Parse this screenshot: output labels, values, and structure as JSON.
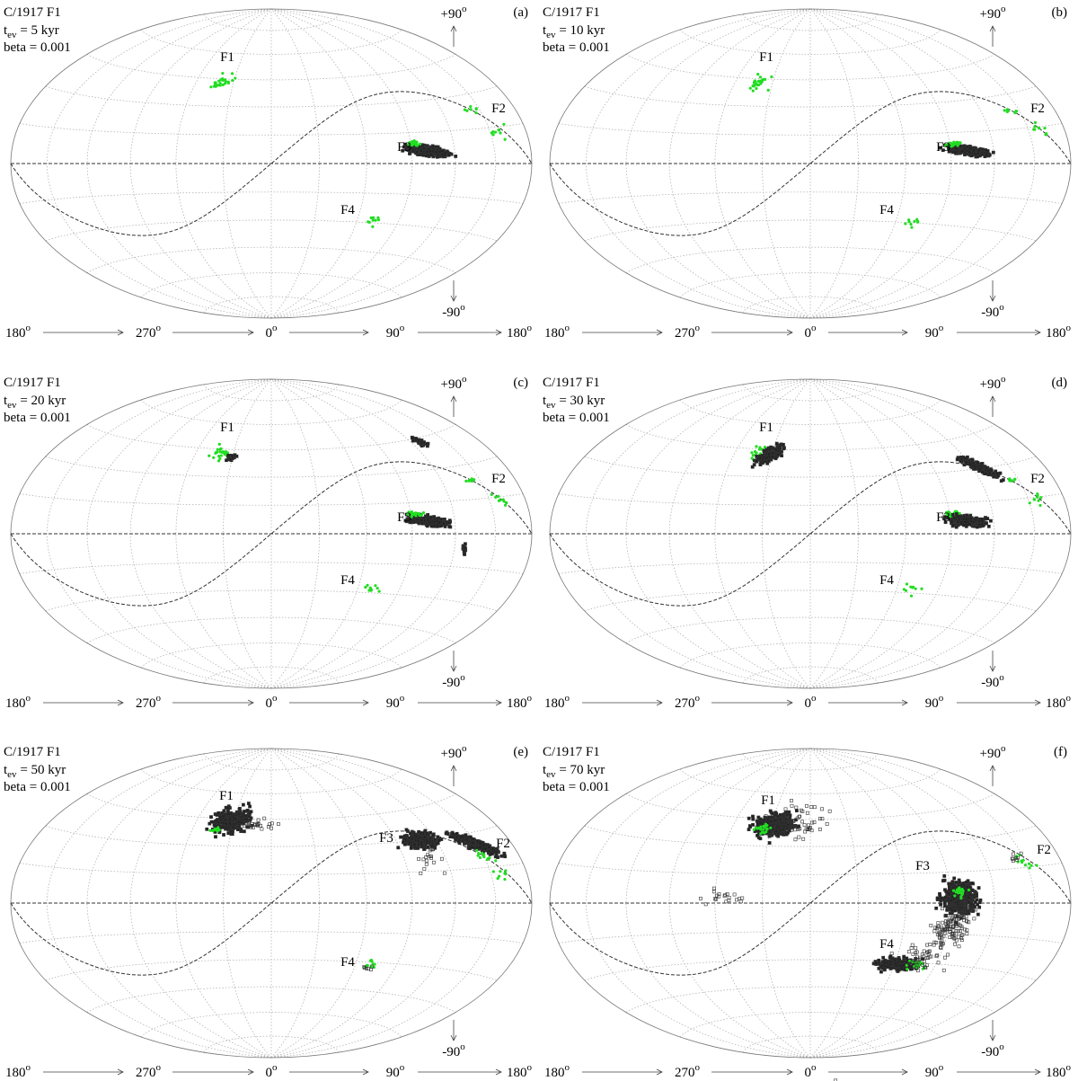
{
  "figure": {
    "object_label": "C/1917 F1",
    "beta_label": "beta = 0.001",
    "t_symbol": "t",
    "t_subscript": "ev",
    "degree_mark": "o",
    "north_label": "+90",
    "south_label": "-90",
    "longitude_labels": [
      "180",
      "270",
      "0",
      "90",
      "180"
    ],
    "source_labels": [
      "F1",
      "F2",
      "F3",
      "F4"
    ]
  },
  "panels": [
    {
      "label": "(a)",
      "evolution_time": " = 5 kyr"
    },
    {
      "label": "(b)",
      "evolution_time": " = 10 kyr"
    },
    {
      "label": "(c)",
      "evolution_time": " = 20 kyr"
    },
    {
      "label": "(d)",
      "evolution_time": " = 30 kyr"
    },
    {
      "label": "(e)",
      "evolution_time": " = 50 kyr"
    },
    {
      "label": "(f)",
      "evolution_time": " = 70 kyr"
    }
  ]
}
